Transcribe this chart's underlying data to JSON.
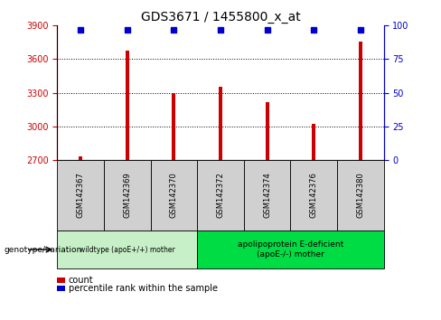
{
  "title": "GDS3671 / 1455800_x_at",
  "categories": [
    "GSM142367",
    "GSM142369",
    "GSM142370",
    "GSM142372",
    "GSM142374",
    "GSM142376",
    "GSM142380"
  ],
  "bar_values": [
    2730,
    3680,
    3295,
    3350,
    3220,
    3020,
    3760
  ],
  "percentile_values": [
    100,
    100,
    100,
    100,
    100,
    100,
    100
  ],
  "bar_color": "#cc0000",
  "percentile_color": "#0000cc",
  "ylim_left": [
    2700,
    3900
  ],
  "ylim_right": [
    0,
    100
  ],
  "yticks_left": [
    2700,
    3000,
    3300,
    3600,
    3900
  ],
  "yticks_right": [
    0,
    25,
    50,
    75,
    100
  ],
  "group1_indices": [
    0,
    1,
    2
  ],
  "group2_indices": [
    3,
    4,
    5,
    6
  ],
  "group1_label": "wildtype (apoE+/+) mother",
  "group2_label": "apolipoprotein E-deficient\n(apoE-/-) mother",
  "group_row_label": "genotype/variation",
  "group1_bg": "#c8f0c8",
  "group2_bg": "#00dd44",
  "tick_label_bg": "#d0d0d0",
  "legend_count_label": "count",
  "legend_pct_label": "percentile rank within the sample",
  "bar_width": 0.08,
  "grid_color": "#000000",
  "right_axis_color": "#0000cc",
  "left_axis_color": "#cc0000",
  "title_fontsize": 10,
  "tick_fontsize": 7,
  "label_fontsize": 6,
  "legend_fontsize": 7
}
